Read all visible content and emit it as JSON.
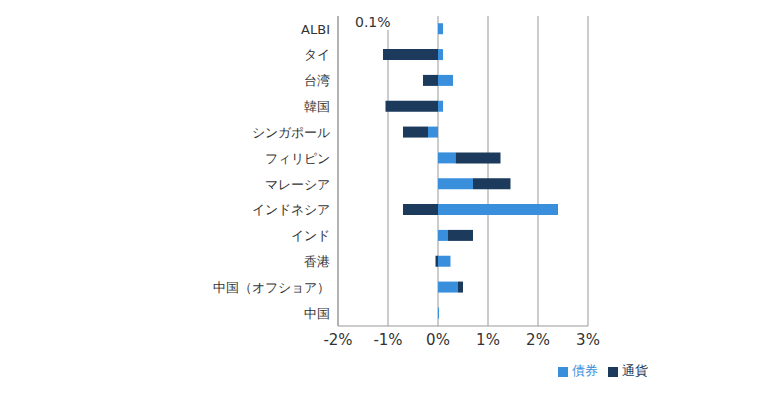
{
  "chart_data": {
    "type": "bar",
    "orientation": "horizontal",
    "stacked": true,
    "grid": true,
    "legend": "bottom",
    "annotations": [
      "0.1%"
    ],
    "categories": [
      "ALBI",
      "タイ",
      "台湾",
      "韓国",
      "シンガポール",
      "フィリピン",
      "マレーシア",
      "インドネシア",
      "インド",
      "香港",
      "中国（オフショア）",
      "中国"
    ],
    "series": [
      {
        "name": "債券",
        "color": "#3a8fdc",
        "values": [
          0.1,
          0.1,
          0.3,
          0.1,
          -0.2,
          0.35,
          0.7,
          2.4,
          0.2,
          0.25,
          0.4,
          0.02
        ]
      },
      {
        "name": "通貨",
        "color": "#1b3a5c",
        "values": [
          0,
          -1.1,
          -0.3,
          -1.05,
          -0.5,
          0.9,
          0.75,
          -0.7,
          0.5,
          -0.05,
          0.1,
          0
        ]
      }
    ],
    "xlim": [
      -2,
      3
    ],
    "xticks": [
      {
        "value": -2,
        "label": "-2%"
      },
      {
        "value": -1,
        "label": "-1%"
      },
      {
        "value": 0,
        "label": "0%"
      },
      {
        "value": 1,
        "label": "1%"
      },
      {
        "value": 2,
        "label": "2%"
      },
      {
        "value": 3,
        "label": "3%"
      }
    ]
  }
}
